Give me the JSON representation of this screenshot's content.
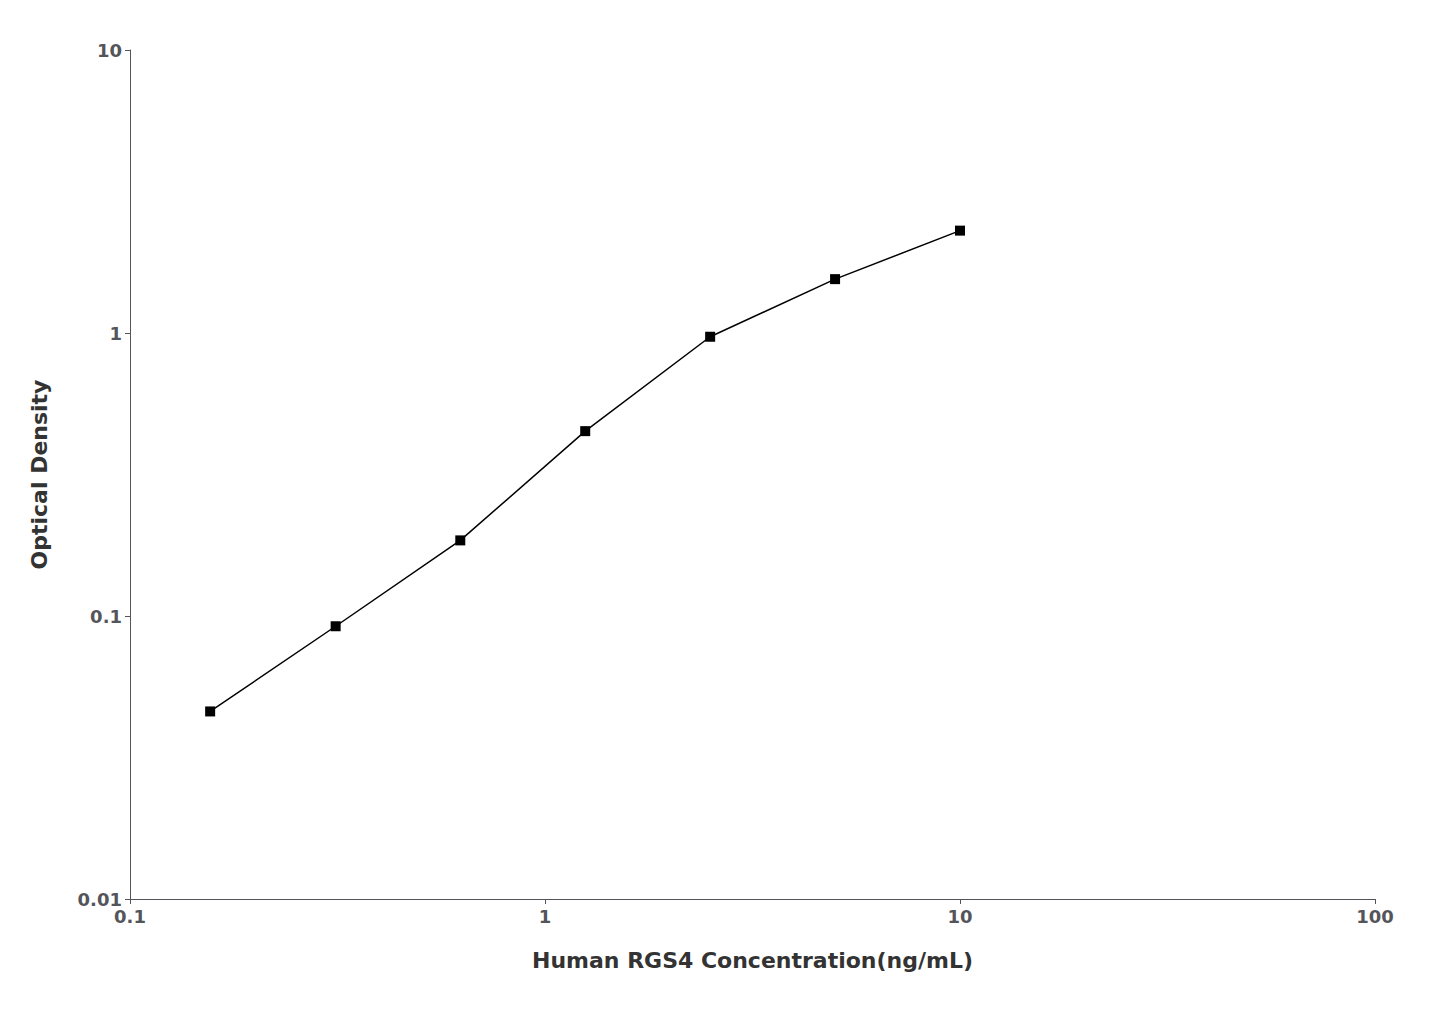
{
  "chart_data": {
    "type": "line",
    "x": [
      0.156,
      0.313,
      0.625,
      1.25,
      2.5,
      5.0,
      10.0
    ],
    "values": [
      0.046,
      0.092,
      0.185,
      0.45,
      0.97,
      1.55,
      2.3
    ],
    "xlabel": "Human RGS4 Concentration(ng/mL)",
    "ylabel": "Optical Density",
    "xlim": [
      0.1,
      100
    ],
    "ylim": [
      0.01,
      10
    ],
    "xticks": [
      0.1,
      1,
      10,
      100
    ],
    "yticks": [
      0.01,
      0.1,
      1,
      10
    ],
    "log": true,
    "grid": false,
    "color": "#000000",
    "marker": "square"
  }
}
